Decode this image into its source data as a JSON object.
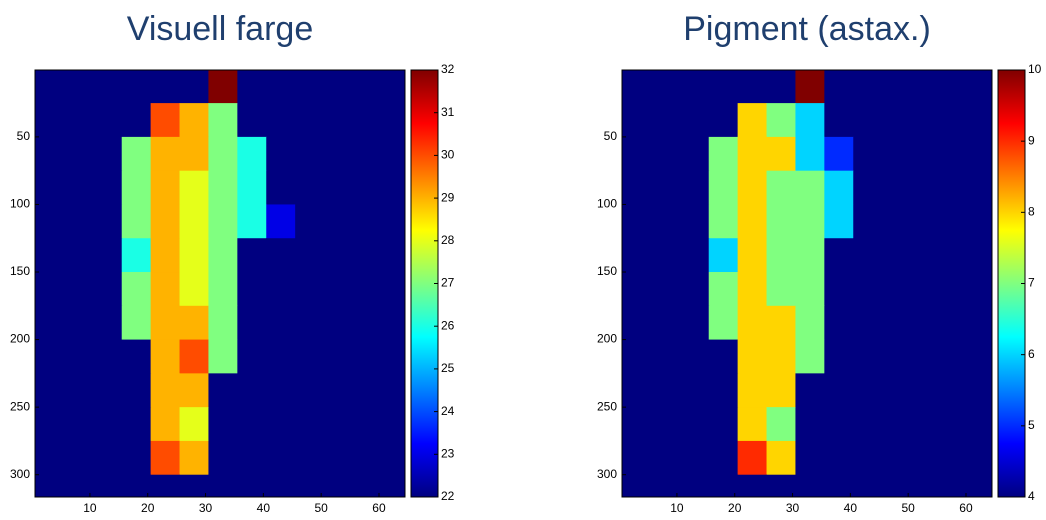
{
  "chart_data": [
    {
      "type": "heatmap",
      "title": "Visuell farge",
      "colormap": "jet",
      "x": [
        3,
        8,
        13,
        18,
        23,
        28,
        33,
        38,
        43,
        48,
        53,
        58,
        63
      ],
      "y": [
        12.5,
        37.5,
        62.5,
        87.5,
        112.5,
        137.5,
        162.5,
        187.5,
        212.5,
        237.5,
        262.5,
        287.5,
        312.5
      ],
      "z": [
        [
          22,
          22,
          22,
          22,
          22,
          22,
          32,
          22,
          22,
          22,
          22,
          22,
          22
        ],
        [
          22,
          22,
          22,
          22,
          30,
          29,
          27,
          22,
          22,
          22,
          22,
          22,
          22
        ],
        [
          22,
          22,
          22,
          27,
          29,
          29,
          27,
          26,
          22,
          22,
          22,
          22,
          22
        ],
        [
          22,
          22,
          22,
          27,
          29,
          28,
          27,
          26,
          22,
          22,
          22,
          22,
          22
        ],
        [
          22,
          22,
          22,
          27,
          29,
          28,
          27,
          26,
          23,
          22,
          22,
          22,
          22
        ],
        [
          22,
          22,
          22,
          26,
          29,
          28,
          27,
          22,
          22,
          22,
          22,
          22,
          22
        ],
        [
          22,
          22,
          22,
          27,
          29,
          28,
          27,
          22,
          22,
          22,
          22,
          22,
          22
        ],
        [
          22,
          22,
          22,
          27,
          29,
          29,
          27,
          22,
          22,
          22,
          22,
          22,
          22
        ],
        [
          22,
          22,
          22,
          22,
          29,
          30,
          27,
          22,
          22,
          22,
          22,
          22,
          22
        ],
        [
          22,
          22,
          22,
          22,
          29,
          29,
          22,
          22,
          22,
          22,
          22,
          22,
          22
        ],
        [
          22,
          22,
          22,
          22,
          29,
          28,
          22,
          22,
          22,
          22,
          22,
          22,
          22
        ],
        [
          22,
          22,
          22,
          22,
          30,
          29,
          22,
          22,
          22,
          22,
          22,
          22,
          22
        ],
        [
          22,
          22,
          22,
          22,
          22,
          22,
          22,
          22,
          22,
          22,
          22,
          22,
          22
        ]
      ],
      "xlim": [
        0.5,
        64.5
      ],
      "ylim": [
        0.5,
        316.5
      ],
      "xticks": [
        10,
        20,
        30,
        40,
        50,
        60
      ],
      "yticks": [
        50,
        100,
        150,
        200,
        250,
        300
      ],
      "clim": [
        22,
        32
      ],
      "cticks": [
        22,
        23,
        24,
        25,
        26,
        27,
        28,
        29,
        30,
        31,
        32
      ]
    },
    {
      "type": "heatmap",
      "title": "Pigment (astax.)",
      "colormap": "jet",
      "x": [
        3,
        8,
        13,
        18,
        23,
        28,
        33,
        38,
        43,
        48,
        53,
        58,
        63
      ],
      "y": [
        12.5,
        37.5,
        62.5,
        87.5,
        112.5,
        137.5,
        162.5,
        187.5,
        212.5,
        237.5,
        262.5,
        287.5,
        312.5
      ],
      "z": [
        [
          4,
          4,
          4,
          4,
          4,
          4,
          10,
          4,
          4,
          4,
          4,
          4,
          4
        ],
        [
          4,
          4,
          4,
          4,
          8,
          7,
          6,
          4,
          4,
          4,
          4,
          4,
          4
        ],
        [
          4,
          4,
          4,
          7,
          8,
          8,
          6,
          5,
          4,
          4,
          4,
          4,
          4
        ],
        [
          4,
          4,
          4,
          7,
          8,
          7,
          7,
          6,
          4,
          4,
          4,
          4,
          4
        ],
        [
          4,
          4,
          4,
          7,
          8,
          7,
          7,
          6,
          4,
          4,
          4,
          4,
          4
        ],
        [
          4,
          4,
          4,
          6,
          8,
          7,
          7,
          4,
          4,
          4,
          4,
          4,
          4
        ],
        [
          4,
          4,
          4,
          7,
          8,
          7,
          7,
          4,
          4,
          4,
          4,
          4,
          4
        ],
        [
          4,
          4,
          4,
          7,
          8,
          8,
          7,
          4,
          4,
          4,
          4,
          4,
          4
        ],
        [
          4,
          4,
          4,
          4,
          8,
          8,
          7,
          4,
          4,
          4,
          4,
          4,
          4
        ],
        [
          4,
          4,
          4,
          4,
          8,
          8,
          4,
          4,
          4,
          4,
          4,
          4,
          4
        ],
        [
          4,
          4,
          4,
          4,
          8,
          7,
          4,
          4,
          4,
          4,
          4,
          4,
          4
        ],
        [
          4,
          4,
          4,
          4,
          9,
          8,
          4,
          4,
          4,
          4,
          4,
          4,
          4
        ],
        [
          4,
          4,
          4,
          4,
          4,
          4,
          4,
          4,
          4,
          4,
          4,
          4,
          4
        ]
      ],
      "xlim": [
        0.5,
        64.5
      ],
      "ylim": [
        0.5,
        316.5
      ],
      "xticks": [
        10,
        20,
        30,
        40,
        50,
        60
      ],
      "yticks": [
        50,
        100,
        150,
        200,
        250,
        300
      ],
      "clim": [
        4,
        10
      ],
      "cticks": [
        4,
        5,
        6,
        7,
        8,
        9,
        10
      ]
    }
  ]
}
